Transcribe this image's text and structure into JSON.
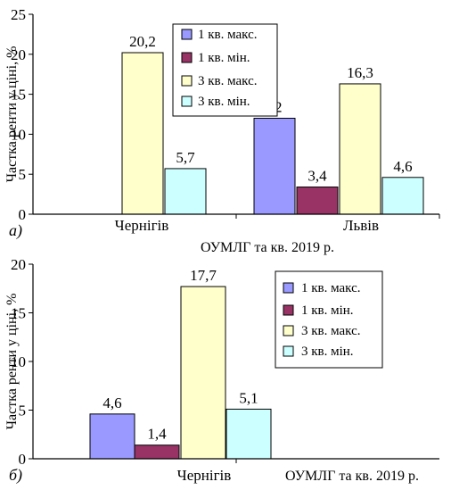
{
  "chart_data": [
    {
      "type": "bar",
      "panel_label": "а)",
      "categories": [
        "Чернігів",
        "Львів"
      ],
      "series": [
        {
          "name": "1 кв. макс.",
          "color": "#9999ff",
          "values": [
            null,
            12
          ]
        },
        {
          "name": "1 кв. мін.",
          "color": "#993366",
          "values": [
            null,
            3.4
          ]
        },
        {
          "name": "3 кв. макс.",
          "color": "#ffffcc",
          "values": [
            20.2,
            16.3
          ]
        },
        {
          "name": "3 кв. мін.",
          "color": "#ccffff",
          "values": [
            5.7,
            4.6
          ]
        }
      ],
      "data_labels": [
        [
          null,
          "12"
        ],
        [
          null,
          "3,4"
        ],
        [
          "20,2",
          "16,3"
        ],
        [
          "5,7",
          "4,6"
        ]
      ],
      "ylabel": "Частка ренти у ціні, %",
      "xlabel": "ОУМЛГ та кв. 2019 р.",
      "ylim": [
        0,
        25
      ],
      "yticks": [
        "0",
        "5",
        "10",
        "15",
        "20",
        "25"
      ],
      "grid": false,
      "legend": "top-right"
    },
    {
      "type": "bar",
      "panel_label": "б)",
      "categories": [
        "Чернігів"
      ],
      "series": [
        {
          "name": "1 кв. макс.",
          "color": "#9999ff",
          "values": [
            4.6
          ]
        },
        {
          "name": "1 кв. мін.",
          "color": "#993366",
          "values": [
            1.4
          ]
        },
        {
          "name": "3 кв. макс.",
          "color": "#ffffcc",
          "values": [
            17.7
          ]
        },
        {
          "name": "3 кв. мін.",
          "color": "#ccffff",
          "values": [
            5.1
          ]
        }
      ],
      "data_labels": [
        [
          "4,6"
        ],
        [
          "1,4"
        ],
        [
          "17,7"
        ],
        [
          "5,1"
        ]
      ],
      "ylabel": "Частка ренти у ціні, %",
      "xlabel": "ОУМЛГ та кв. 2019 р.",
      "ylim": [
        0,
        20
      ],
      "yticks": [
        "0",
        "5",
        "10",
        "15",
        "20"
      ],
      "grid": false,
      "legend": "right"
    }
  ]
}
